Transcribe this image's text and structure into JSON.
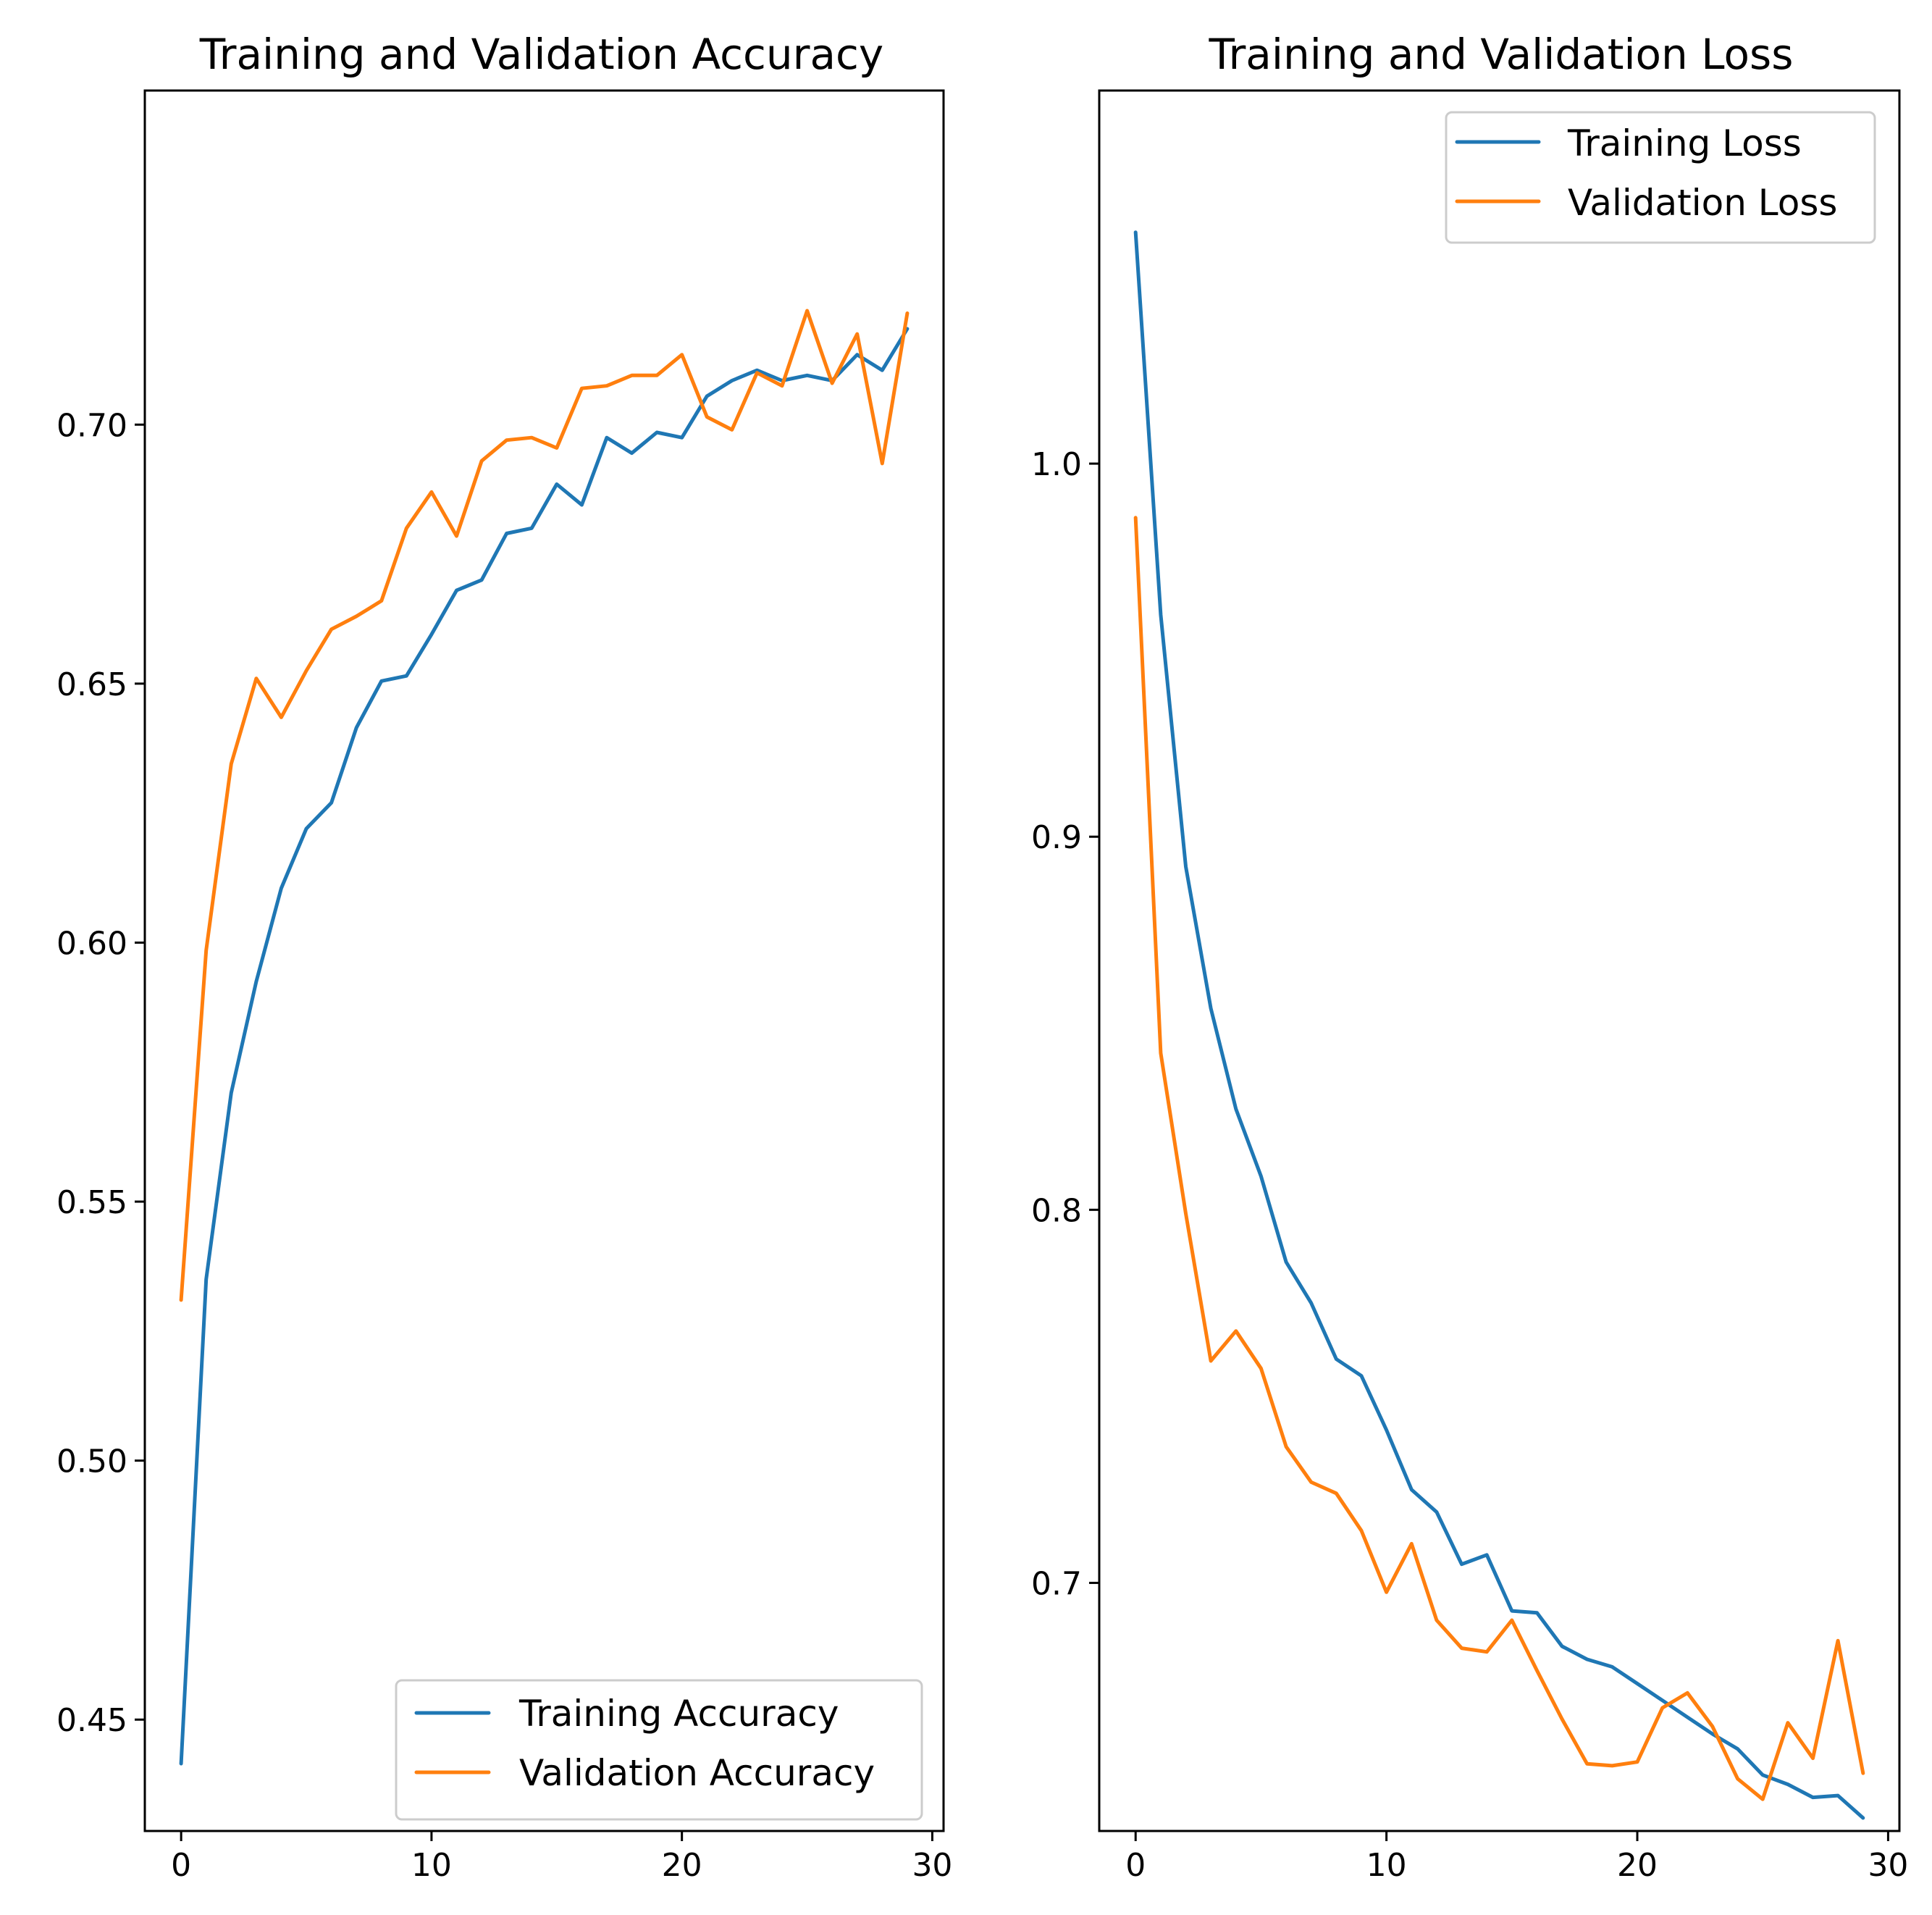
{
  "colors": {
    "training": "#1f77b4",
    "validation": "#ff7f0e"
  },
  "chart_data": [
    {
      "type": "line",
      "title": "Training and Validation Accuracy",
      "xlabel": "",
      "ylabel": "",
      "xlim": [
        -1.45,
        30.45
      ],
      "ylim": [
        0.4285,
        0.7645
      ],
      "xticks": [
        0,
        10,
        20,
        30
      ],
      "xtick_labels": [
        "0",
        "10",
        "20",
        "30"
      ],
      "yticks": [
        0.45,
        0.5,
        0.55,
        0.6,
        0.65,
        0.7
      ],
      "ytick_labels": [
        "0.45",
        "0.50",
        "0.55",
        "0.60",
        "0.65",
        "0.70"
      ],
      "legend_position": "lower-right",
      "x": [
        0,
        1,
        2,
        3,
        4,
        5,
        6,
        7,
        8,
        9,
        10,
        11,
        12,
        13,
        14,
        15,
        16,
        17,
        18,
        19,
        20,
        21,
        22,
        23,
        24,
        25,
        26,
        27,
        28,
        29
      ],
      "series": [
        {
          "name": "Training Accuracy",
          "color_key": "training",
          "values": [
            0.4415,
            0.535,
            0.571,
            0.5925,
            0.6105,
            0.622,
            0.627,
            0.6415,
            0.6505,
            0.6515,
            0.6595,
            0.668,
            0.67,
            0.679,
            0.68,
            0.6885,
            0.6845,
            0.6975,
            0.6945,
            0.6985,
            0.6975,
            0.7055,
            0.7085,
            0.7105,
            0.7085,
            0.7095,
            0.7085,
            0.7135,
            0.7105,
            0.7185
          ]
        },
        {
          "name": "Validation Accuracy",
          "color_key": "validation",
          "values": [
            0.531,
            0.5985,
            0.6345,
            0.651,
            0.6435,
            0.6525,
            0.6605,
            0.663,
            0.666,
            0.68,
            0.687,
            0.6785,
            0.693,
            0.697,
            0.6975,
            0.6955,
            0.707,
            0.7075,
            0.7095,
            0.7095,
            0.7135,
            0.7015,
            0.699,
            0.71,
            0.7075,
            0.722,
            0.708,
            0.7175,
            0.6925,
            0.7215
          ]
        }
      ]
    },
    {
      "type": "line",
      "title": "Training and Validation Loss",
      "xlabel": "",
      "ylabel": "",
      "xlim": [
        -1.45,
        30.45
      ],
      "ylim": [
        0.6335,
        1.1
      ],
      "xticks": [
        0,
        10,
        20,
        30
      ],
      "xtick_labels": [
        "0",
        "10",
        "20",
        "30"
      ],
      "yticks": [
        0.7,
        0.8,
        0.9,
        1.0
      ],
      "ytick_labels": [
        "0.7",
        "0.8",
        "0.9",
        "1.0"
      ],
      "legend_position": "upper-right",
      "x": [
        0,
        1,
        2,
        3,
        4,
        5,
        6,
        7,
        8,
        9,
        10,
        11,
        12,
        13,
        14,
        15,
        16,
        17,
        18,
        19,
        20,
        21,
        22,
        23,
        24,
        25,
        26,
        27,
        28,
        29
      ],
      "series": [
        {
          "name": "Training Loss",
          "color_key": "training",
          "values": [
            1.062,
            0.9595,
            0.892,
            0.854,
            0.827,
            0.809,
            0.786,
            0.775,
            0.76,
            0.7555,
            0.741,
            0.725,
            0.719,
            0.705,
            0.7075,
            0.6925,
            0.692,
            0.683,
            0.6795,
            0.6775,
            0.673,
            0.6685,
            0.664,
            0.6595,
            0.6555,
            0.6485,
            0.646,
            0.6425,
            0.643,
            0.637
          ]
        },
        {
          "name": "Validation Loss",
          "color_key": "validation",
          "values": [
            0.9855,
            0.842,
            0.799,
            0.7595,
            0.7675,
            0.7575,
            0.7365,
            0.727,
            0.724,
            0.714,
            0.6975,
            0.7105,
            0.69,
            0.6825,
            0.6815,
            0.69,
            0.6765,
            0.6635,
            0.6515,
            0.651,
            0.652,
            0.6665,
            0.6705,
            0.6615,
            0.6475,
            0.642,
            0.6625,
            0.653,
            0.6845,
            0.649
          ]
        }
      ]
    }
  ]
}
